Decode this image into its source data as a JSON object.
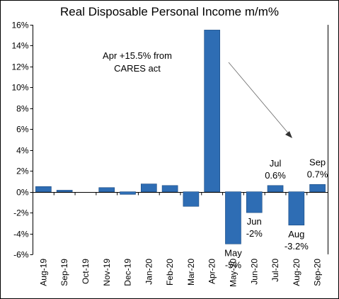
{
  "chart_data": {
    "type": "bar",
    "title": "Real Disposable Personal Income m/m%",
    "xlabel": "",
    "ylabel": "",
    "ylim": [
      -6,
      16
    ],
    "yticks": [
      "-6%",
      "-4%",
      "-2%",
      "0%",
      "2%",
      "4%",
      "6%",
      "8%",
      "10%",
      "12%",
      "14%",
      "16%"
    ],
    "categories": [
      "Aug-19",
      "Sep-19",
      "Oct-19",
      "Nov-19",
      "Dec-19",
      "Jan-20",
      "Feb-20",
      "Mar-20",
      "Apr-20",
      "May-20",
      "Jun-20",
      "Jul-20",
      "Aug-20",
      "Sep-20"
    ],
    "values": [
      0.5,
      0.15,
      0.0,
      0.4,
      -0.25,
      0.75,
      0.6,
      -1.4,
      15.5,
      -5.0,
      -2.0,
      0.6,
      -3.2,
      0.7
    ],
    "bar_color": "#2e6db4",
    "grid": false,
    "data_labels": [
      {
        "category": "May-20",
        "lines": [
          "May",
          "-5%"
        ]
      },
      {
        "category": "Jun-20",
        "lines": [
          "Jun",
          "-2%"
        ]
      },
      {
        "category": "Jul-20",
        "lines": [
          "Jul",
          "0.6%"
        ]
      },
      {
        "category": "Aug-20",
        "lines": [
          "Aug",
          "-3.2%"
        ]
      },
      {
        "category": "Sep-20",
        "lines": [
          "Sep",
          "0.7%"
        ]
      }
    ],
    "annotation": {
      "lines": [
        "Apr +15.5% from",
        "CARES act"
      ]
    }
  }
}
